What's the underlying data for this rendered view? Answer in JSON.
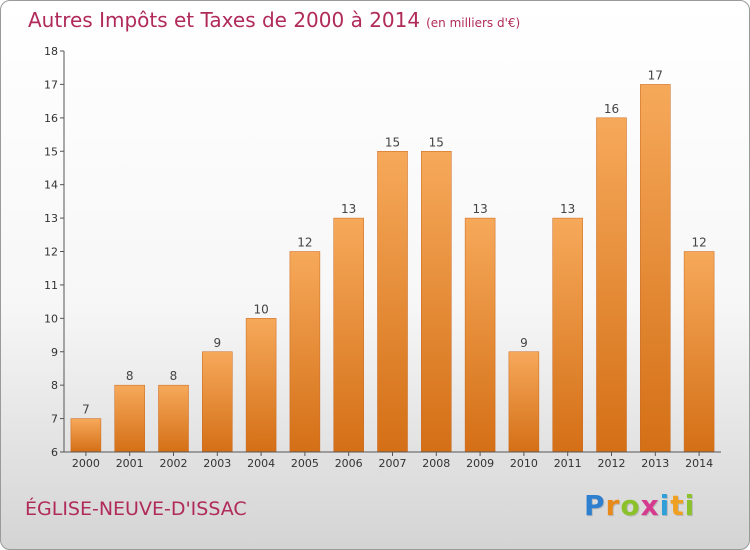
{
  "header": {
    "title": "Autres Impôts et Taxes de 2000 à 2014",
    "unit": "(en milliers d'€)"
  },
  "footer": {
    "commune": "ÉGLISE-NEUVE-D'ISSAC"
  },
  "logo": {
    "letters": [
      "P",
      "r",
      "o",
      "x",
      "i",
      "t",
      "i"
    ],
    "colors": [
      "#2f7fd0",
      "#e88a1a",
      "#8bc22c",
      "#d63a8f",
      "#2f9fd8",
      "#f0a020",
      "#8bc22c"
    ]
  },
  "colors": {
    "title": "#b02a5a",
    "bar_top": "#f6a95a",
    "bar_bottom": "#d46f16",
    "axis": "#555555"
  },
  "chart_data": {
    "type": "bar",
    "title": "Autres Impôts et Taxes de 2000 à 2014",
    "categories": [
      "2000",
      "2001",
      "2002",
      "2003",
      "2004",
      "2005",
      "2006",
      "2007",
      "2008",
      "2009",
      "2010",
      "2011",
      "2012",
      "2013",
      "2014"
    ],
    "values": [
      7,
      8,
      8,
      9,
      10,
      12,
      13,
      15,
      15,
      13,
      9,
      13,
      16,
      17,
      12
    ],
    "ylim": [
      6,
      18
    ],
    "yticks": [
      6,
      7,
      8,
      9,
      10,
      11,
      12,
      13,
      14,
      15,
      16,
      17,
      18
    ],
    "grid": false,
    "data_labels": true
  }
}
